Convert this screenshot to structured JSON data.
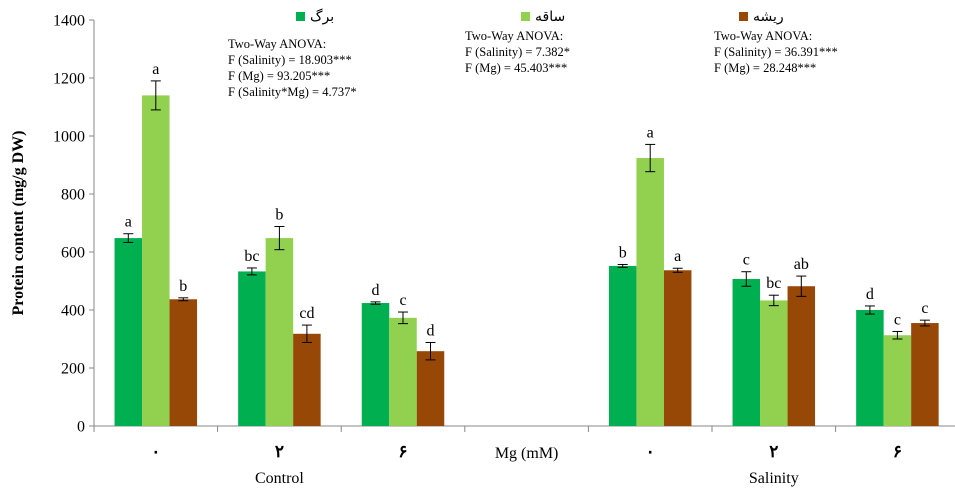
{
  "chart_data": {
    "type": "bar",
    "ylabel": "Protein content (mg/g DW)",
    "ylim": [
      0,
      1400
    ],
    "yticks": [
      0,
      200,
      400,
      600,
      800,
      1000,
      1200,
      1400
    ],
    "center_label": "Mg (mM)",
    "groups": [
      {
        "name": "Control",
        "categories": [
          "۰",
          "۲",
          "۶"
        ]
      },
      {
        "name": "Salinity",
        "categories": [
          "۰",
          "۲",
          "۶"
        ]
      }
    ],
    "series": [
      {
        "name": "برگ",
        "color": "#00b050",
        "values": [
          648,
          533,
          424,
          552,
          507,
          400
        ],
        "errors": [
          15,
          12,
          4,
          5,
          25,
          14
        ],
        "letters": [
          "a",
          "bc",
          "d",
          "b",
          "c",
          "d"
        ]
      },
      {
        "name": "ساقه",
        "color": "#92d050",
        "values": [
          1140,
          648,
          373,
          924,
          433,
          313
        ],
        "errors": [
          50,
          40,
          20,
          47,
          18,
          13
        ],
        "letters": [
          "a",
          "b",
          "c",
          "a",
          "bc",
          "c"
        ]
      },
      {
        "name": "ریشه",
        "color": "#984806",
        "values": [
          437,
          318,
          258,
          537,
          482,
          355
        ],
        "errors": [
          5,
          30,
          30,
          7,
          35,
          10
        ],
        "letters": [
          "b",
          "cd",
          "d",
          "a",
          "ab",
          "c"
        ]
      }
    ],
    "annotations": [
      {
        "lines": [
          "Two-Way ANOVA:",
          "F (Salinity) = 18.903***",
          "F (Mg) = 93.205***",
          "F (Salinity*Mg) = 4.737*"
        ]
      },
      {
        "lines": [
          "Two-Way ANOVA:",
          "F (Salinity) = 7.382*",
          "F (Mg) = 45.403***"
        ]
      },
      {
        "lines": [
          "Two-Way ANOVA:",
          "F (Salinity) = 36.391***",
          "F (Mg) = 28.248***"
        ]
      }
    ],
    "legend": "top",
    "grid": false
  }
}
